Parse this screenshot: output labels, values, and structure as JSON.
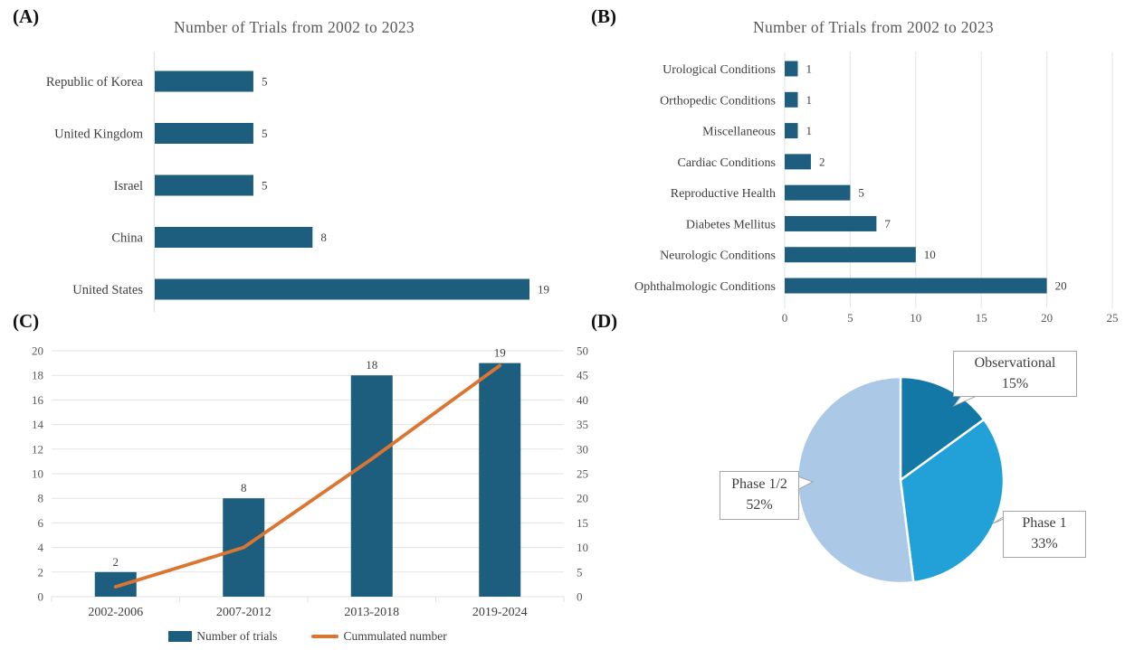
{
  "panels": {
    "a": {
      "label": "(A)"
    },
    "b": {
      "label": "(B)"
    },
    "c": {
      "label": "(C)"
    },
    "d": {
      "label": "(D)"
    }
  },
  "colors": {
    "bar_blue": "#1d5e7e",
    "line_orange": "#db7532",
    "grid": "#e3e3e3",
    "axis_text": "#595959",
    "label_text": "#3f3f3f",
    "title_text": "#595959",
    "pie_dark_blue": "#1478a6",
    "pie_mid_blue": "#22a0d8",
    "pie_light_blue": "#abc9e7",
    "callout_border": "#a6a6a6"
  },
  "chart_data": [
    {
      "panel": "A",
      "type": "bar",
      "orientation": "horizontal",
      "title": "Number of Trials from 2002 to 2023",
      "categories": [
        "Republic of Korea",
        "United Kingdom",
        "Israel",
        "China",
        "United States"
      ],
      "values": [
        5,
        5,
        5,
        8,
        19
      ],
      "xlim": [
        0,
        19
      ],
      "grid": false,
      "data_labels": true
    },
    {
      "panel": "B",
      "type": "bar",
      "orientation": "horizontal",
      "title": "Number of Trials from 2002 to 2023",
      "categories": [
        "Urological Conditions",
        "Orthopedic Conditions",
        "Miscellaneous",
        "Cardiac Conditions",
        "Reproductive Health",
        "Diabetes Mellitus",
        "Neurologic Conditions",
        "Ophthalmologic Conditions"
      ],
      "values": [
        1,
        1,
        1,
        2,
        5,
        7,
        10,
        20
      ],
      "xlim": [
        0,
        25
      ],
      "xticks": [
        0,
        5,
        10,
        15,
        20,
        25
      ],
      "grid": true,
      "data_labels": true
    },
    {
      "panel": "C",
      "type": "bar+line",
      "categories": [
        "2002-2006",
        "2007-2012",
        "2013-2018",
        "2019-2024"
      ],
      "series": [
        {
          "name": "Number of trials",
          "type": "bar",
          "axis": "left",
          "values": [
            2,
            8,
            18,
            19
          ]
        },
        {
          "name": "Cummulated number",
          "type": "line",
          "axis": "right",
          "values": [
            2,
            10,
            28,
            47
          ]
        }
      ],
      "left_ylim": [
        0,
        20
      ],
      "left_yticks": [
        0,
        2,
        4,
        6,
        8,
        10,
        12,
        14,
        16,
        18,
        20
      ],
      "right_ylim": [
        0,
        50
      ],
      "right_yticks": [
        0,
        5,
        10,
        15,
        20,
        25,
        30,
        35,
        40,
        45,
        50
      ],
      "grid": "horizontal",
      "legend_position": "bottom",
      "data_labels": true
    },
    {
      "panel": "D",
      "type": "pie",
      "start_angle_deg": 0,
      "direction": "clockwise",
      "slices": [
        {
          "label": "Observational",
          "pct": 15,
          "pct_text": "15%"
        },
        {
          "label": "Phase 1",
          "pct": 33,
          "pct_text": "33%"
        },
        {
          "label": "Phase 1/2",
          "pct": 52,
          "pct_text": "52%"
        }
      ]
    }
  ]
}
